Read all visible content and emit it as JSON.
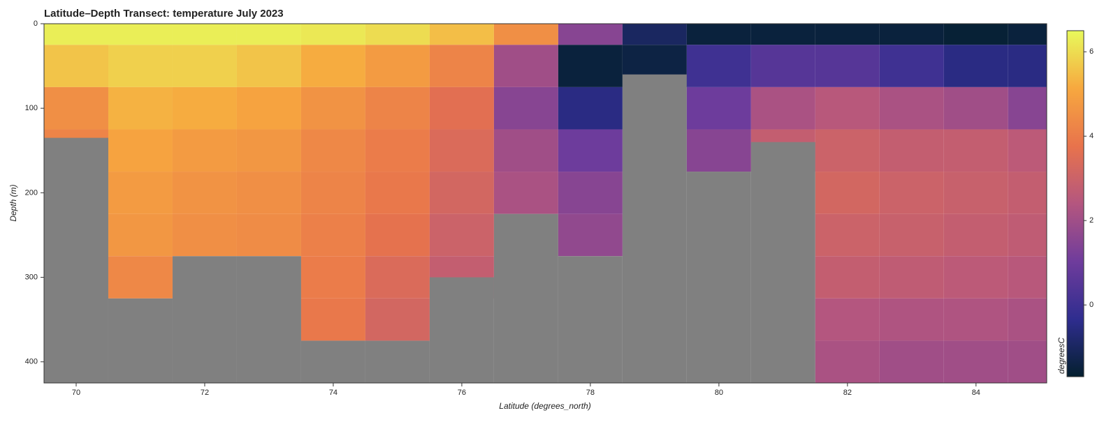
{
  "chart_data": {
    "type": "heatmap",
    "title": "Latitude–Depth Transect: temperature July 2023",
    "x_label": "Latitude (degrees_north)",
    "y_label": "Depth (m)",
    "colorbar_label": "degreesC",
    "x": [
      70,
      71,
      72,
      73,
      74,
      75,
      76,
      77,
      78,
      79,
      80,
      81,
      82,
      83,
      84,
      85
    ],
    "depths": [
      0,
      50,
      100,
      150,
      200,
      250,
      300,
      350,
      400
    ],
    "values": [
      [
        6.3,
        5.6,
        4.5,
        4.2,
        null,
        null,
        null,
        null,
        null
      ],
      [
        6.3,
        5.8,
        5.3,
        5.0,
        4.8,
        4.7,
        4.3,
        null,
        null
      ],
      [
        6.3,
        5.8,
        5.2,
        4.8,
        4.6,
        4.5,
        null,
        null,
        null
      ],
      [
        6.3,
        5.6,
        5.0,
        4.7,
        4.5,
        4.4,
        null,
        null,
        null
      ],
      [
        6.2,
        5.2,
        4.6,
        4.3,
        4.2,
        4.1,
        4.0,
        3.9,
        null
      ],
      [
        6.0,
        4.8,
        4.2,
        4.0,
        3.9,
        3.7,
        3.4,
        3.2,
        null
      ],
      [
        5.5,
        4.2,
        3.6,
        3.4,
        3.2,
        3.0,
        2.8,
        null,
        null
      ],
      [
        4.5,
        2.0,
        1.5,
        2.0,
        2.2,
        null,
        null,
        null,
        null
      ],
      [
        1.5,
        -1.5,
        -0.5,
        1.0,
        1.5,
        1.7,
        null,
        null,
        null
      ],
      [
        -1.0,
        -1.4,
        null,
        null,
        null,
        null,
        null,
        null,
        null
      ],
      [
        -1.5,
        0,
        1.0,
        1.5,
        null,
        null,
        null,
        null,
        null
      ],
      [
        -1.5,
        0.5,
        2.2,
        2.8,
        null,
        null,
        null,
        null,
        null
      ],
      [
        -1.5,
        0.5,
        2.5,
        3.0,
        3.2,
        3.0,
        2.8,
        2.4,
        2.2
      ],
      [
        -1.5,
        0,
        2.2,
        2.8,
        3.0,
        2.9,
        2.7,
        2.3,
        2.0
      ],
      [
        -1.6,
        -0.5,
        2.0,
        2.8,
        2.9,
        2.8,
        2.6,
        2.3,
        2.0
      ],
      [
        -1.5,
        -0.5,
        1.5,
        2.6,
        2.8,
        2.7,
        2.5,
        2.2,
        2.0
      ]
    ],
    "seafloor_depth": [
      135,
      325,
      275,
      275,
      375,
      375,
      300,
      225,
      275,
      60,
      175,
      140,
      425,
      425,
      425,
      425
    ],
    "seafloor_color": "#808080",
    "xlim": [
      69.5,
      85.1
    ],
    "xticks": [
      70,
      72,
      74,
      76,
      78,
      80,
      82,
      84
    ],
    "ylim": [
      0,
      425
    ],
    "yticks": [
      0,
      100,
      200,
      300,
      400
    ],
    "y_inverted": true,
    "clim": [
      -1.7,
      6.5
    ],
    "cticks": [
      0,
      2,
      4,
      6
    ],
    "colormap": [
      "#04202f",
      "#2f2d8f",
      "#6f3c9c",
      "#b4567f",
      "#e8734c",
      "#f7a83f",
      "#e8fa5b"
    ]
  }
}
